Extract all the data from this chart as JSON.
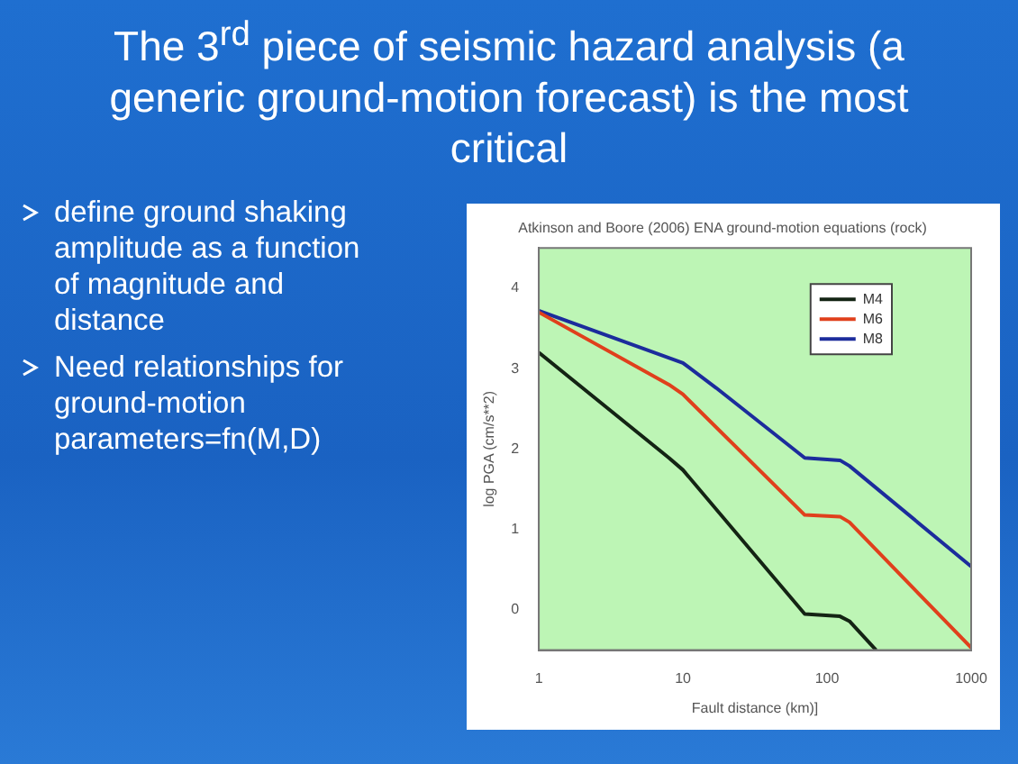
{
  "chart_data": {
    "type": "line",
    "title": "The 3$^{rd}$ piece of seismic hazard analysis (a generic ground-motion forecast) is the most critical",
    "subtitle": "Atkinson and Boore (2006) ENA ground-motion equations (rock)",
    "annotations": [
      "define ground shaking amplitude as a function of magnitude and distance",
      "Need relationships for ground-motion parameters=fn(M,D)"
    ],
    "xlabel": "Fault distance (km)]",
    "ylabel": "log PGA (cm/s**2)",
    "log": "x",
    "xlim": [
      1,
      1000
    ],
    "xticks": [
      1,
      10,
      100,
      1000
    ],
    "ylim": [
      -0.5,
      4.5
    ],
    "yticks": [
      0,
      1,
      2,
      3,
      4
    ],
    "grid": false,
    "legend": "top right",
    "marker": "none",
    "line_style": "solid",
    "series": [
      {
        "name": "M4",
        "color": "#142414",
        "x": [
          1,
          8,
          10,
          70,
          123,
          143,
          219
        ],
        "values": [
          3.2,
          1.89,
          1.74,
          -0.05,
          -0.08,
          -0.14,
          -0.5
        ]
      },
      {
        "name": "M6",
        "color": "#e0401c",
        "x": [
          1,
          8,
          10,
          70,
          123,
          143,
          1000
        ],
        "values": [
          3.7,
          2.8,
          2.68,
          1.18,
          1.16,
          1.09,
          -0.47
        ]
      },
      {
        "name": "M8",
        "color": "#1c2c9c",
        "x": [
          1,
          10,
          17,
          70,
          123,
          143,
          1000
        ],
        "values": [
          3.72,
          3.07,
          2.76,
          1.89,
          1.86,
          1.79,
          0.54
        ]
      }
    ]
  }
}
